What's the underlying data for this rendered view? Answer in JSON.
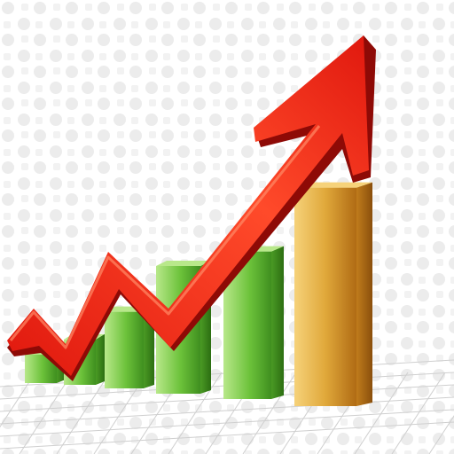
{
  "illustration": {
    "subject": "growth-bar-chart-with-rising-arrow",
    "colors": {
      "background": "#ffffff",
      "pattern": "#ececec",
      "grid_line": "#cfcfcf",
      "bar_green_light": "#b8e88a",
      "bar_green_mid": "#6cc23a",
      "bar_green_dark": "#3f8f1f",
      "bar_gold_light": "#f6d27a",
      "bar_gold_mid": "#e0a83a",
      "bar_gold_dark": "#b06b14",
      "arrow_light": "#ff4a2a",
      "arrow_mid": "#e0180e",
      "arrow_dark": "#8e0a06"
    },
    "bars": [
      {
        "color": "green",
        "level": 0.1
      },
      {
        "color": "green",
        "level": 0.16
      },
      {
        "color": "green",
        "level": 0.27
      },
      {
        "color": "green",
        "level": 0.45
      },
      {
        "color": "green",
        "level": 0.52
      },
      {
        "color": "gold",
        "level": 0.77
      }
    ],
    "arrow_icon": "trend-up-arrow-icon"
  }
}
